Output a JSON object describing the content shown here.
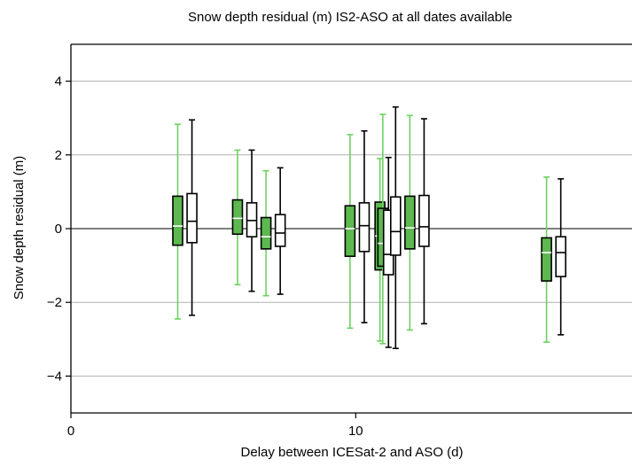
{
  "chart_data": {
    "type": "box",
    "title": "Snow depth residual (m) IS2-ASO at all dates available",
    "xlabel": "Delay between ICESat-2 and ASO (d)",
    "ylabel": "Snow depth residual (m)",
    "xlim": [
      0,
      19.7
    ],
    "ylim": [
      -5,
      5
    ],
    "xticks": [
      0,
      10
    ],
    "yticks": [
      -4,
      -2,
      0,
      2,
      4
    ],
    "ytick_labels": [
      "−4",
      "−2",
      "0",
      "2",
      "4"
    ],
    "grid": "horizontal",
    "zero_line": true,
    "colors": {
      "filled": "#5cb84f",
      "filled_whisker": "#6dd161",
      "outline": "#000000",
      "grid": "#b0b0b0"
    },
    "series": [
      {
        "style": "filled",
        "boxes": [
          {
            "x": 3.75,
            "whislo": -2.45,
            "q1": -0.45,
            "med": 0.07,
            "q3": 0.88,
            "whishi": 2.83
          },
          {
            "x": 5.85,
            "whislo": -1.52,
            "q1": -0.15,
            "med": 0.28,
            "q3": 0.78,
            "whishi": 2.13
          },
          {
            "x": 6.85,
            "whislo": -1.82,
            "q1": -0.55,
            "med": -0.22,
            "q3": 0.3,
            "whishi": 1.57
          },
          {
            "x": 9.8,
            "whislo": -2.7,
            "q1": -0.75,
            "med": 0.0,
            "q3": 0.62,
            "whishi": 2.55
          },
          {
            "x": 10.85,
            "whislo": -3.05,
            "q1": -1.12,
            "med": -0.2,
            "q3": 0.72,
            "whishi": 1.9
          },
          {
            "x": 10.95,
            "whislo": -3.12,
            "q1": -1.02,
            "med": -0.4,
            "q3": 0.55,
            "whishi": 3.1
          },
          {
            "x": 11.9,
            "whislo": -2.75,
            "q1": -0.55,
            "med": 0.02,
            "q3": 0.88,
            "whishi": 3.07
          },
          {
            "x": 16.7,
            "whislo": -3.08,
            "q1": -1.42,
            "med": -0.65,
            "q3": -0.25,
            "whishi": 1.4
          }
        ]
      },
      {
        "style": "outline",
        "boxes": [
          {
            "x": 4.25,
            "whislo": -2.35,
            "q1": -0.38,
            "med": 0.2,
            "q3": 0.95,
            "whishi": 2.95
          },
          {
            "x": 6.35,
            "whislo": -1.7,
            "q1": -0.22,
            "med": 0.22,
            "q3": 0.7,
            "whishi": 2.13
          },
          {
            "x": 7.35,
            "whislo": -1.78,
            "q1": -0.48,
            "med": -0.12,
            "q3": 0.38,
            "whishi": 1.65
          },
          {
            "x": 10.3,
            "whislo": -2.55,
            "q1": -0.62,
            "med": 0.08,
            "q3": 0.7,
            "whishi": 2.65
          },
          {
            "x": 11.15,
            "whislo": -3.22,
            "q1": -1.25,
            "med": -0.7,
            "q3": 0.5,
            "whishi": 1.93
          },
          {
            "x": 11.4,
            "whislo": -3.25,
            "q1": -0.72,
            "med": -0.08,
            "q3": 0.86,
            "whishi": 3.3
          },
          {
            "x": 12.4,
            "whislo": -2.58,
            "q1": -0.48,
            "med": 0.05,
            "q3": 0.9,
            "whishi": 2.98
          },
          {
            "x": 17.2,
            "whislo": -2.88,
            "q1": -1.3,
            "med": -0.65,
            "q3": -0.22,
            "whishi": 1.35
          }
        ]
      }
    ]
  }
}
